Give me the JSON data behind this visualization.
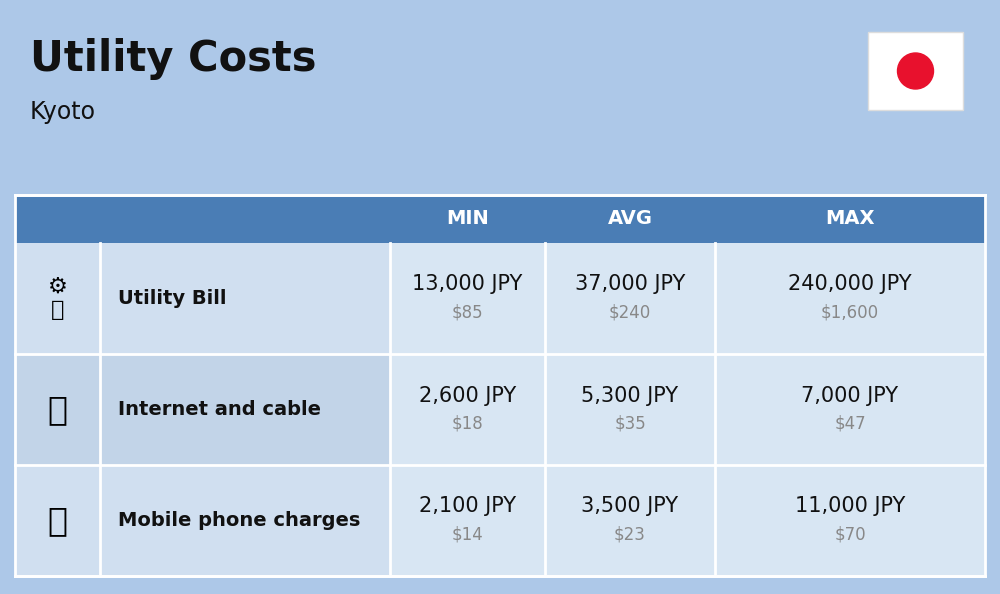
{
  "title": "Utility Costs",
  "subtitle": "Kyoto",
  "background_color": "#adc8e8",
  "header_bg_color": "#4a7db5",
  "header_text_color": "#ffffff",
  "row_bg_light": "#d0dff0",
  "row_bg_dark": "#c2d4e8",
  "cell_bg": "#d8e6f3",
  "header_labels": [
    "MIN",
    "AVG",
    "MAX"
  ],
  "rows": [
    {
      "label": "Utility Bill",
      "min_jpy": "13,000 JPY",
      "min_usd": "$85",
      "avg_jpy": "37,000 JPY",
      "avg_usd": "$240",
      "max_jpy": "240,000 JPY",
      "max_usd": "$1,600"
    },
    {
      "label": "Internet and cable",
      "min_jpy": "2,600 JPY",
      "min_usd": "$18",
      "avg_jpy": "5,300 JPY",
      "avg_usd": "$35",
      "max_jpy": "7,000 JPY",
      "max_usd": "$47"
    },
    {
      "label": "Mobile phone charges",
      "min_jpy": "2,100 JPY",
      "min_usd": "$14",
      "avg_jpy": "3,500 JPY",
      "avg_usd": "$23",
      "max_jpy": "11,000 JPY",
      "max_usd": "$70"
    }
  ],
  "flag_bg": "#ffffff",
  "flag_circle_color": "#e8112d",
  "title_fontsize": 30,
  "subtitle_fontsize": 17,
  "header_fontsize": 14,
  "label_fontsize": 14,
  "value_fontsize": 15,
  "usd_fontsize": 12,
  "icon_symbols": [
    "⚡",
    "📡",
    "📱"
  ]
}
